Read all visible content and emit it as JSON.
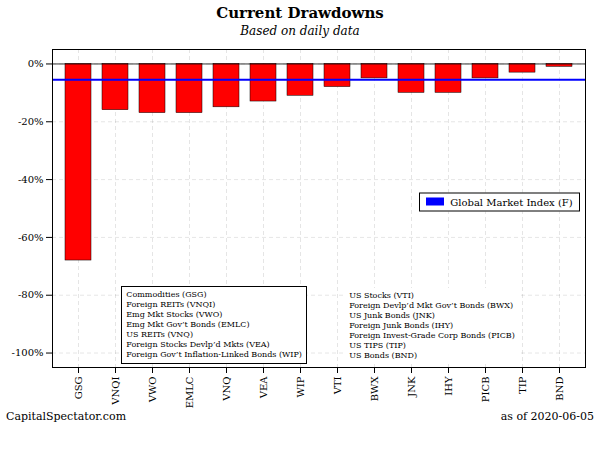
{
  "chart_data": {
    "type": "bar",
    "title": "Current Drawdowns",
    "subtitle": "Based on daily data",
    "categories": [
      "GSG",
      "VNQI",
      "VWO",
      "EMLC",
      "VNQ",
      "VEA",
      "WIP",
      "VTI",
      "BWX",
      "JNK",
      "IHY",
      "PICB",
      "TIP",
      "BND"
    ],
    "values": [
      -68,
      -16,
      -17,
      -17,
      -15,
      -13,
      -11,
      -8,
      -5,
      -10,
      -10,
      -5,
      -3,
      -1
    ],
    "color": "#FF0000",
    "ylim": [
      -105,
      5
    ],
    "yticks": [
      {
        "value": 0,
        "label": "0%"
      },
      {
        "value": -20,
        "label": "-20%"
      },
      {
        "value": -40,
        "label": "-40%"
      },
      {
        "value": -60,
        "label": "-60%"
      },
      {
        "value": -80,
        "label": "-80%"
      },
      {
        "value": -100,
        "label": "-100%"
      }
    ],
    "baseline": 0,
    "reference_line": {
      "value": -5.5,
      "label": "Global Market Index (F)",
      "color": "#0000FF"
    },
    "legend": "right",
    "grid": true,
    "notes_left": [
      "Commodities (GSG)",
      "Foreign REITs (VNQI)",
      "Emg Mkt Stocks (VWO)",
      "Emg Mkt Gov’t Bonds (EMLC)",
      "US REITs (VNQ)",
      "Foreign Stocks Devlp’d Mkts (VEA)",
      "Foreign Gov’t Inflation-Linked Bonds (WIP)"
    ],
    "notes_right": [
      "US Stocks (VTI)",
      "Foreign Devlp’d Mkt Gov’t Bonds (BWX)",
      "US Junk Bonds (JNK)",
      "Foreign Junk Bonds (IHY)",
      "Foreign Invest-Grade Corp Bonds (PICB)",
      "US TIPS (TIP)",
      "US Bonds (BND)"
    ],
    "footer_left": "CapitalSpectator.com",
    "footer_right": "as of   2020-06-05"
  }
}
